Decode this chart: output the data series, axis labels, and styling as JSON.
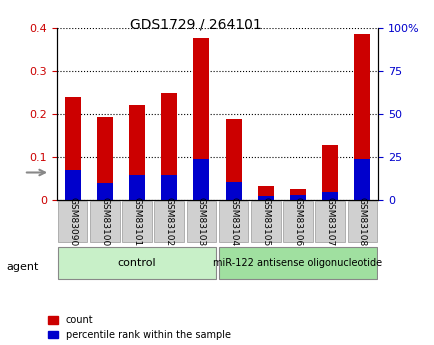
{
  "title": "GDS1729 / 264101",
  "samples": [
    "GSM83090",
    "GSM83100",
    "GSM83101",
    "GSM83102",
    "GSM83103",
    "GSM83104",
    "GSM83105",
    "GSM83106",
    "GSM83107",
    "GSM83108"
  ],
  "count_values": [
    0.24,
    0.192,
    0.22,
    0.248,
    0.375,
    0.188,
    0.033,
    0.025,
    0.128,
    0.385
  ],
  "percentile_values": [
    0.07,
    0.04,
    0.058,
    0.058,
    0.095,
    0.043,
    0.01,
    0.012,
    0.018,
    0.095
  ],
  "bar_color": "#cc0000",
  "percentile_color": "#0000cc",
  "ylim_left": [
    0,
    0.4
  ],
  "ylim_right": [
    0,
    100
  ],
  "yticks_left": [
    0,
    0.1,
    0.2,
    0.3,
    0.4
  ],
  "yticks_right": [
    0,
    25,
    50,
    75,
    100
  ],
  "ytick_labels_left": [
    "0",
    "0.1",
    "0.2",
    "0.3",
    "0.4"
  ],
  "ytick_labels_right": [
    "0",
    "25",
    "50",
    "75",
    "100%"
  ],
  "left_tick_color": "#cc0000",
  "right_tick_color": "#0000cc",
  "control_label": "control",
  "treatment_label": "miR-122 antisense oligonucleotide",
  "agent_label": "agent",
  "control_color": "#c8f0c8",
  "treatment_color": "#a0e0a0",
  "legend_count_label": "count",
  "legend_percentile_label": "percentile rank within the sample",
  "bar_width": 0.5,
  "tick_label_bg": "#d0d0d0",
  "n_control": 5,
  "n_treatment": 5
}
